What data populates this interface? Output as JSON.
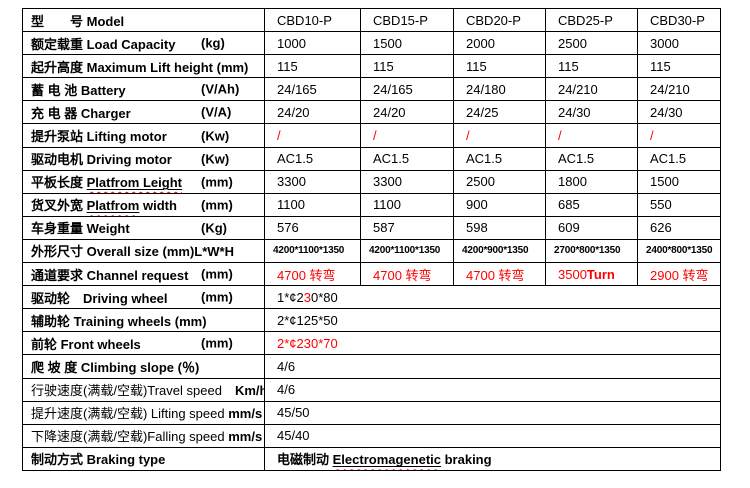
{
  "colors": {
    "red": "#FF0000",
    "border": "#000000",
    "background": "#FFFFFF"
  },
  "table": {
    "header_label": "型　　号 Model",
    "models": [
      "CBD10-P",
      "CBD15-P",
      "CBD20-P",
      "CBD25-P",
      "CBD30-P"
    ],
    "rows": [
      {
        "key": "load-capacity",
        "label": [
          {
            "t": "额定载重 Load Capacity",
            "b": true
          }
        ],
        "unit": "(kg)",
        "values": [
          "1000",
          "1500",
          "2000",
          "2500",
          "3000"
        ]
      },
      {
        "key": "max-lift-height",
        "label": [
          {
            "t": "起升高度 Maximum Lift height (mm)",
            "b": true
          }
        ],
        "values": [
          "115",
          "115",
          "115",
          "115",
          "115"
        ]
      },
      {
        "key": "battery",
        "label": [
          {
            "t": "蓄 电 池 Battery",
            "b": true
          }
        ],
        "unit": "(V/Ah)",
        "values": [
          "24/165",
          "24/165",
          "24/180",
          "24/210",
          "24/210"
        ]
      },
      {
        "key": "charger",
        "label": [
          {
            "t": "充 电 器 Charger",
            "b": true
          }
        ],
        "unit": "(V/A)",
        "values": [
          "24/20",
          "24/20",
          "24/25",
          "24/30",
          "24/30"
        ]
      },
      {
        "key": "lifting-motor",
        "label": [
          {
            "t": "提升泵站 Lifting motor",
            "b": true
          }
        ],
        "unit": "(Kw)",
        "values": [
          {
            "text": "/",
            "color": "#FF0000"
          },
          {
            "text": "/",
            "color": "#FF0000"
          },
          {
            "text": "/",
            "color": "#FF0000"
          },
          {
            "text": "/",
            "color": "#FF0000"
          },
          {
            "text": "/",
            "color": "#FF0000"
          }
        ]
      },
      {
        "key": "driving-motor",
        "label": [
          {
            "t": "驱动电机 Driving motor",
            "b": true
          }
        ],
        "unit": "(Kw)",
        "values": [
          "AC1.5",
          "AC1.5",
          "AC1.5",
          "AC1.5",
          "AC1.5"
        ]
      },
      {
        "key": "platform-length",
        "label": [
          {
            "t": "平板长度 ",
            "b": true
          },
          {
            "t": "Platfrom Leight",
            "b": true,
            "w": true
          }
        ],
        "unit": "(mm)",
        "values": [
          "3300",
          "3300",
          "2500",
          "1800",
          "1500"
        ]
      },
      {
        "key": "platform-width",
        "label": [
          {
            "t": "货叉外宽 ",
            "b": true
          },
          {
            "t": "Platfrom",
            "b": true,
            "w": true
          },
          {
            "t": " width",
            "b": true
          }
        ],
        "unit": "(mm)",
        "values": [
          "1100",
          "1100",
          "900",
          "685",
          "550"
        ]
      },
      {
        "key": "weight",
        "label": [
          {
            "t": "车身重量 Weight",
            "b": true
          }
        ],
        "unit": "(Kg)",
        "values": [
          "576",
          "587",
          "598",
          "609",
          "626"
        ]
      },
      {
        "key": "overall-size",
        "label": [
          {
            "t": "外形尺寸 Overall size (mm)L*W*H",
            "b": true
          }
        ],
        "valueClass": "small",
        "values": [
          "4200*1100*1350",
          "4200*1100*1350",
          "4200*900*1350",
          "2700*800*1350",
          "2400*800*1350"
        ]
      },
      {
        "key": "channel-request",
        "label": [
          {
            "t": "通道要求 Channel request",
            "b": true
          }
        ],
        "unit": "(mm)",
        "values": [
          {
            "text": "4700 转弯",
            "color": "#FF0000"
          },
          {
            "text": "4700 转弯",
            "color": "#FF0000"
          },
          {
            "text": "4700 转弯",
            "color": "#FF0000"
          },
          {
            "segments": [
              {
                "t": "3500",
                "c": "#FF0000"
              },
              {
                "t": "Turn",
                "c": "#FF0000",
                "b": true
              }
            ]
          },
          {
            "text": "2900 转弯",
            "color": "#FF0000"
          }
        ]
      },
      {
        "key": "driving-wheel",
        "label": [
          {
            "t": "驱动轮　Driving wheel",
            "b": true
          }
        ],
        "unit": "(mm)",
        "span": true,
        "values": [
          {
            "segments": [
              {
                "t": "1*¢2"
              },
              {
                "t": "3",
                "c": "#FF0000"
              },
              {
                "t": "0*80"
              }
            ]
          }
        ]
      },
      {
        "key": "training-wheels",
        "label": [
          {
            "t": "辅助轮 Training wheels (mm)",
            "b": true
          }
        ],
        "span": true,
        "values": [
          "2*¢125*50"
        ]
      },
      {
        "key": "front-wheels",
        "label": [
          {
            "t": "前轮 Front wheels",
            "b": true
          }
        ],
        "unit": "(mm)",
        "span": true,
        "values": [
          {
            "text": "2*¢230*70",
            "color": "#FF0000"
          }
        ]
      },
      {
        "key": "climbing-slope",
        "label": [
          {
            "t": "爬 坡 度 Climbing slope (％)",
            "b": true
          }
        ],
        "span": true,
        "values": [
          "4/6"
        ]
      },
      {
        "key": "travel-speed",
        "label": [
          {
            "t": "行驶速度(满载/空载)Travel speed　",
            "b": false
          },
          {
            "t": "Km/h",
            "b": true
          }
        ],
        "span": true,
        "values": [
          "4/6"
        ]
      },
      {
        "key": "lifting-speed",
        "label": [
          {
            "t": "提升速度(满载/空载) Lifting speed ",
            "b": false
          },
          {
            "t": "mm/s",
            "b": true
          }
        ],
        "span": true,
        "values": [
          "45/50"
        ]
      },
      {
        "key": "falling-speed",
        "label": [
          {
            "t": "下降速度(满载/空载)Falling speed ",
            "b": false
          },
          {
            "t": "mm/s",
            "b": true
          }
        ],
        "span": true,
        "values": [
          "45/40"
        ]
      },
      {
        "key": "braking-type",
        "label": [
          {
            "t": "制动方式 Braking type",
            "b": true
          }
        ],
        "span": true,
        "values": [
          {
            "segments": [
              {
                "t": "电磁制动 ",
                "b": true
              },
              {
                "t": "Electromagenetic",
                "b": true,
                "w": true
              },
              {
                "t": " braking",
                "b": true
              }
            ]
          }
        ]
      }
    ]
  }
}
